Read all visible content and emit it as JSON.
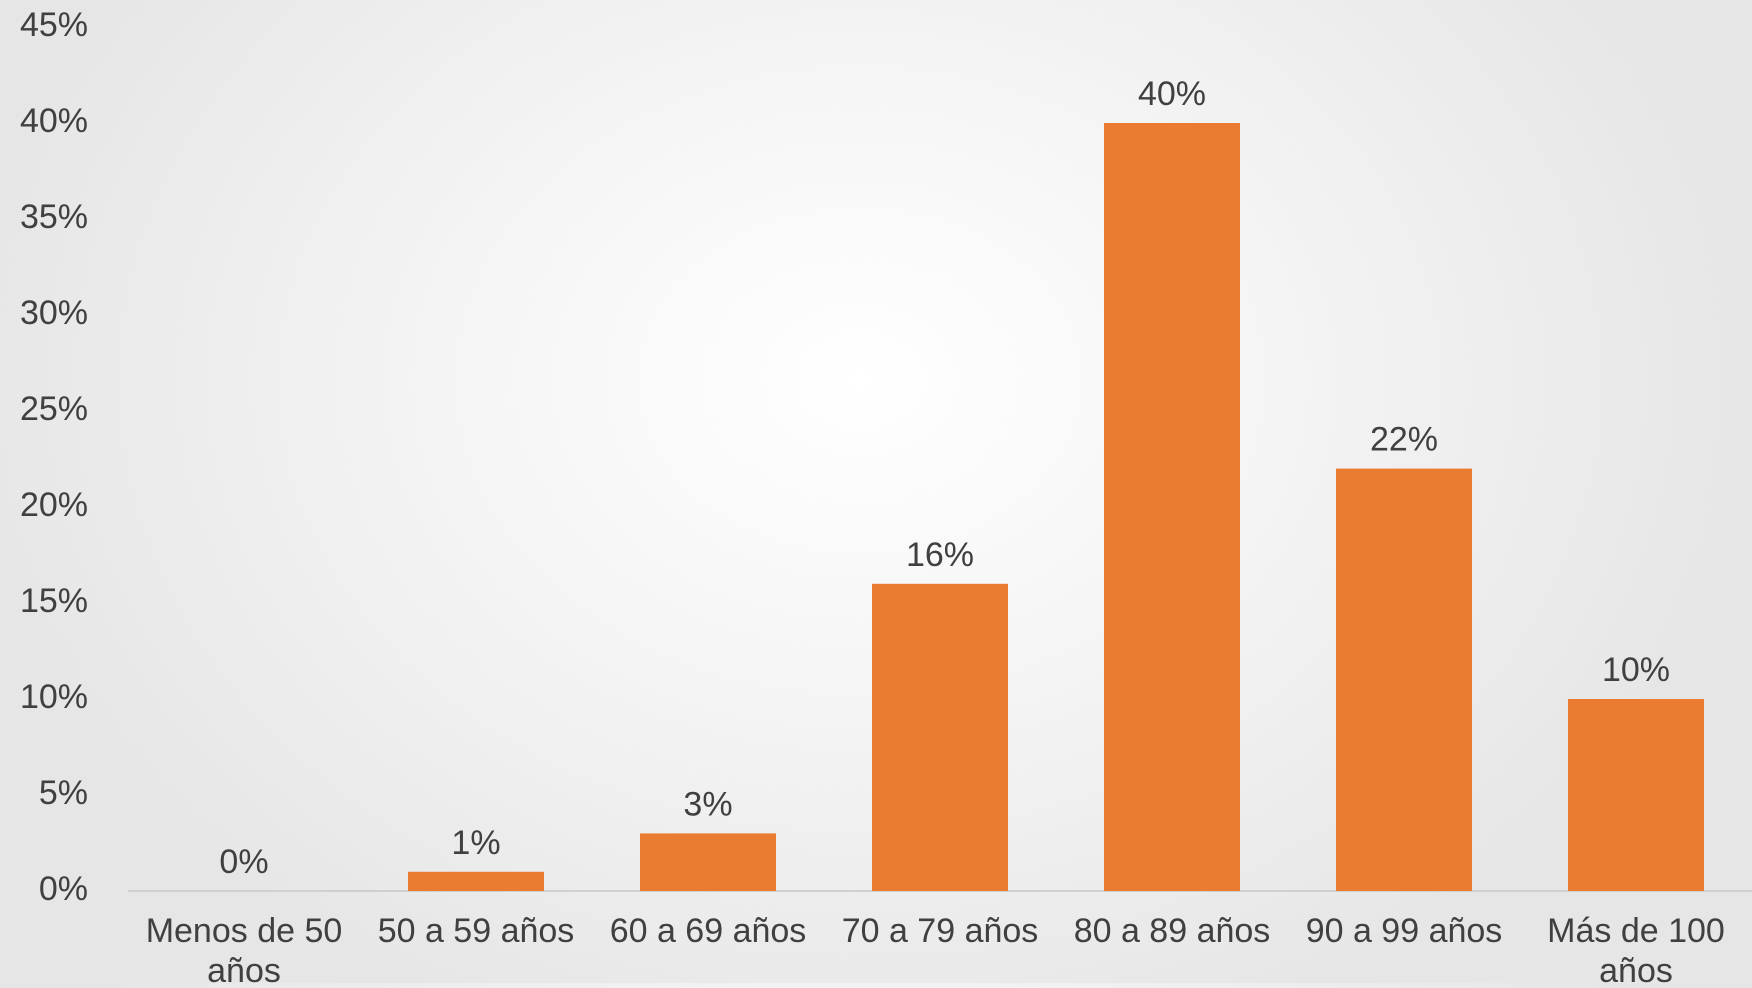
{
  "chart_data": {
    "type": "bar",
    "title": "",
    "xlabel": "",
    "ylabel": "",
    "categories": [
      [
        "Menos de 50",
        "años"
      ],
      [
        "50 a 59 años"
      ],
      [
        "60 a 69 años"
      ],
      [
        "70 a 79 años"
      ],
      [
        "80 a 89 años"
      ],
      [
        "90 a 99 años"
      ],
      [
        "Más de 100",
        "años"
      ]
    ],
    "values": [
      0,
      1,
      3,
      16,
      40,
      22,
      10
    ],
    "data_labels": [
      "0%",
      "1%",
      "3%",
      "16%",
      "40%",
      "22%",
      "10%"
    ],
    "ylim": [
      0,
      45
    ],
    "yticks": [
      0,
      5,
      10,
      15,
      20,
      25,
      30,
      35,
      40,
      45
    ],
    "ytick_labels": [
      "0%",
      "5%",
      "10%",
      "15%",
      "20%",
      "25%",
      "30%",
      "35%",
      "40%",
      "45%"
    ],
    "bar_color": "#E97C30",
    "grid": false,
    "legend": "none"
  }
}
